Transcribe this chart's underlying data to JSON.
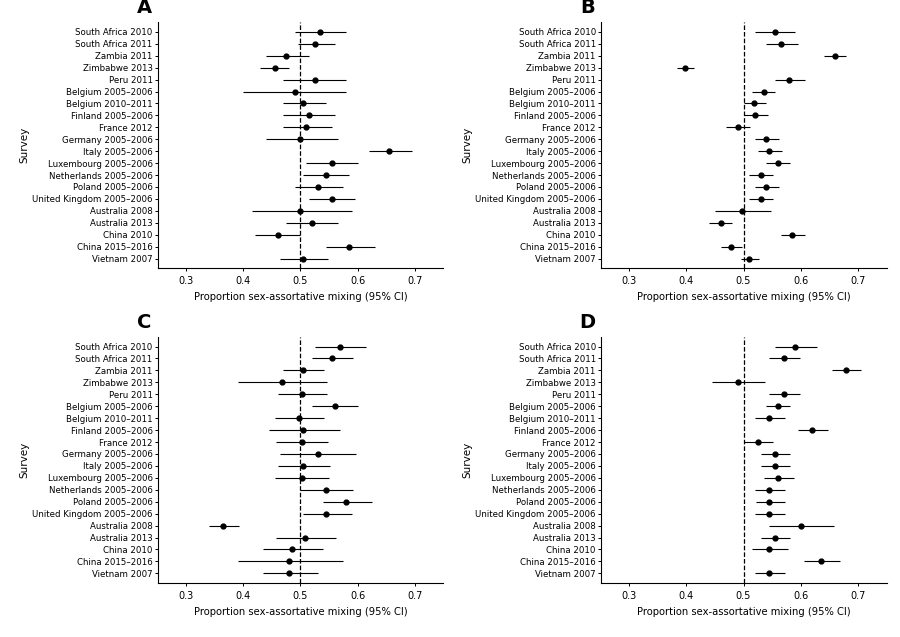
{
  "surveys": [
    "South Africa 2010",
    "South Africa 2011",
    "Zambia 2011",
    "Zimbabwe 2013",
    "Peru 2011",
    "Belgium 2005–2006",
    "Belgium 2010–2011",
    "Finland 2005–2006",
    "France 2012",
    "Germany 2005–2006",
    "Italy 2005–2006",
    "Luxembourg 2005–2006",
    "Netherlands 2005–2006",
    "Poland 2005–2006",
    "United Kingdom 2005–2006",
    "Australia 2008",
    "Australia 2013",
    "China 2010",
    "China 2015–2016",
    "Vietnam 2007"
  ],
  "panels": {
    "A": {
      "label": "A",
      "point": [
        0.535,
        0.525,
        0.475,
        0.455,
        0.525,
        0.49,
        0.505,
        0.515,
        0.51,
        0.5,
        0.655,
        0.555,
        0.545,
        0.53,
        0.555,
        0.5,
        0.52,
        0.46,
        0.585,
        0.505
      ],
      "lo": [
        0.49,
        0.495,
        0.44,
        0.43,
        0.47,
        0.4,
        0.47,
        0.47,
        0.47,
        0.44,
        0.62,
        0.51,
        0.505,
        0.49,
        0.515,
        0.415,
        0.475,
        0.42,
        0.545,
        0.465
      ],
      "hi": [
        0.58,
        0.56,
        0.515,
        0.48,
        0.58,
        0.58,
        0.545,
        0.56,
        0.555,
        0.565,
        0.695,
        0.6,
        0.585,
        0.575,
        0.595,
        0.59,
        0.565,
        0.5,
        0.63,
        0.548
      ]
    },
    "B": {
      "label": "B",
      "point": [
        0.555,
        0.565,
        0.66,
        0.398,
        0.58,
        0.535,
        0.518,
        0.52,
        0.49,
        0.54,
        0.545,
        0.56,
        0.53,
        0.54,
        0.53,
        0.498,
        0.46,
        0.585,
        0.478,
        0.51
      ],
      "lo": [
        0.52,
        0.54,
        0.64,
        0.383,
        0.555,
        0.515,
        0.5,
        0.5,
        0.47,
        0.52,
        0.525,
        0.54,
        0.51,
        0.52,
        0.51,
        0.45,
        0.44,
        0.565,
        0.46,
        0.495
      ],
      "hi": [
        0.59,
        0.595,
        0.68,
        0.413,
        0.608,
        0.555,
        0.54,
        0.542,
        0.512,
        0.562,
        0.568,
        0.582,
        0.552,
        0.562,
        0.552,
        0.548,
        0.48,
        0.607,
        0.498,
        0.527
      ]
    },
    "C": {
      "label": "C",
      "point": [
        0.57,
        0.555,
        0.505,
        0.468,
        0.502,
        0.56,
        0.497,
        0.505,
        0.502,
        0.53,
        0.505,
        0.502,
        0.545,
        0.58,
        0.545,
        0.365,
        0.508,
        0.485,
        0.48,
        0.48
      ],
      "lo": [
        0.525,
        0.52,
        0.47,
        0.39,
        0.46,
        0.52,
        0.455,
        0.445,
        0.458,
        0.465,
        0.46,
        0.455,
        0.5,
        0.54,
        0.505,
        0.34,
        0.458,
        0.435,
        0.39,
        0.435
      ],
      "hi": [
        0.615,
        0.592,
        0.542,
        0.546,
        0.546,
        0.6,
        0.542,
        0.57,
        0.548,
        0.598,
        0.552,
        0.55,
        0.592,
        0.625,
        0.59,
        0.393,
        0.562,
        0.54,
        0.575,
        0.53
      ]
    },
    "D": {
      "label": "D",
      "point": [
        0.59,
        0.57,
        0.68,
        0.49,
        0.57,
        0.56,
        0.545,
        0.62,
        0.525,
        0.555,
        0.555,
        0.56,
        0.545,
        0.545,
        0.545,
        0.6,
        0.555,
        0.545,
        0.635,
        0.545
      ],
      "lo": [
        0.555,
        0.545,
        0.655,
        0.445,
        0.545,
        0.54,
        0.52,
        0.595,
        0.5,
        0.53,
        0.53,
        0.535,
        0.52,
        0.522,
        0.52,
        0.545,
        0.53,
        0.515,
        0.605,
        0.52
      ],
      "hi": [
        0.628,
        0.598,
        0.705,
        0.538,
        0.598,
        0.582,
        0.572,
        0.648,
        0.552,
        0.582,
        0.582,
        0.588,
        0.572,
        0.572,
        0.572,
        0.658,
        0.582,
        0.578,
        0.668,
        0.573
      ]
    }
  },
  "dashed_line": 0.5,
  "xlim": [
    0.25,
    0.75
  ],
  "xticks": [
    0.3,
    0.4,
    0.5,
    0.6,
    0.7
  ],
  "xlabel": "Proportion sex-assortative mixing (95% CI)",
  "ylabel": "Survey",
  "background_color": "#ffffff"
}
